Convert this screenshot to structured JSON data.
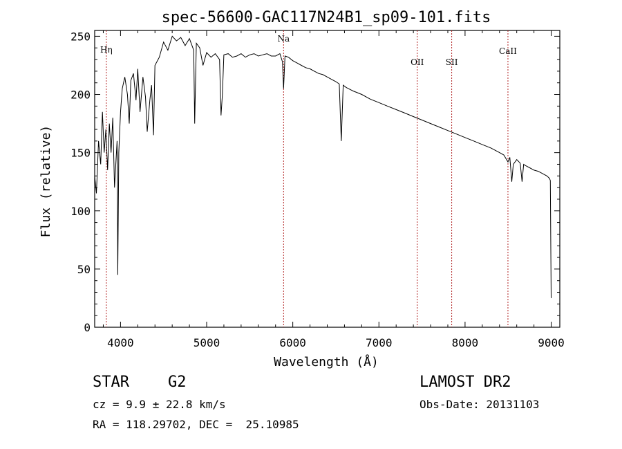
{
  "chart_data": {
    "type": "line",
    "title": "spec-56600-GAC117N24B1_sp09-101.fits",
    "xlabel": "Wavelength (Å)",
    "ylabel": "Flux (relative)",
    "xlim": [
      3700,
      9100
    ],
    "ylim": [
      0,
      255
    ],
    "x_ticks": [
      "4000",
      "5000",
      "6000",
      "7000",
      "8000",
      "9000"
    ],
    "y_ticks": [
      "0",
      "50",
      "100",
      "150",
      "200",
      "250"
    ],
    "series": [
      {
        "x": [
          3700,
          3720,
          3745,
          3770,
          3790,
          3810,
          3830,
          3850,
          3870,
          3890,
          3910,
          3930,
          3960,
          3968,
          3980,
          4000,
          4020,
          4050,
          4080,
          4101,
          4120,
          4150,
          4180,
          4200,
          4226,
          4260,
          4290,
          4310,
          4340,
          4360,
          4383,
          4400,
          4450,
          4500,
          4550,
          4600,
          4650,
          4700,
          4750,
          4800,
          4850,
          4861,
          4880,
          4920,
          4957,
          5000,
          5050,
          5100,
          5150,
          5167,
          5183,
          5200,
          5250,
          5300,
          5350,
          5400,
          5450,
          5500,
          5550,
          5600,
          5650,
          5700,
          5750,
          5800,
          5850,
          5880,
          5893,
          5910,
          5950,
          6000,
          6050,
          6100,
          6150,
          6200,
          6250,
          6300,
          6350,
          6400,
          6450,
          6500,
          6540,
          6563,
          6585,
          6620,
          6700,
          6800,
          6900,
          7000,
          7100,
          7200,
          7300,
          7400,
          7500,
          7600,
          7700,
          7800,
          7900,
          8000,
          8100,
          8200,
          8300,
          8400,
          8450,
          8498,
          8520,
          8542,
          8560,
          8600,
          8640,
          8662,
          8680,
          8700,
          8750,
          8800,
          8850,
          8900,
          8950,
          8980,
          8990,
          9000
        ],
        "y": [
          130,
          115,
          160,
          140,
          185,
          150,
          170,
          135,
          175,
          150,
          180,
          120,
          160,
          45,
          150,
          185,
          205,
          215,
          200,
          175,
          212,
          218,
          195,
          222,
          185,
          215,
          198,
          168,
          195,
          208,
          165,
          225,
          232,
          245,
          238,
          250,
          246,
          249,
          242,
          248,
          238,
          175,
          244,
          240,
          225,
          236,
          232,
          235,
          230,
          182,
          200,
          234,
          235,
          232,
          233,
          235,
          232,
          234,
          235,
          233,
          234,
          235,
          233,
          233,
          235,
          228,
          205,
          233,
          232,
          229,
          227,
          225,
          223,
          222,
          220,
          218,
          217,
          215,
          213,
          211,
          209,
          160,
          208,
          206,
          203,
          200,
          196,
          193,
          190,
          187,
          184,
          181,
          178,
          175,
          172,
          169,
          166,
          163,
          160,
          157,
          154,
          150,
          148,
          142,
          146,
          125,
          140,
          144,
          141,
          125,
          140,
          139,
          137,
          135,
          134,
          132,
          130,
          128,
          126,
          25
        ]
      }
    ],
    "lines": [
      {
        "label": "Hη",
        "x": 3835
      },
      {
        "label": "Na",
        "x": 5893
      },
      {
        "label": "OII",
        "x": 7445
      },
      {
        "label": "SII",
        "x": 7845
      },
      {
        "label": "CaII",
        "x": 8498
      }
    ],
    "grid": false
  },
  "info": {
    "class": "STAR",
    "subclass": "G2",
    "survey": "LAMOST DR2",
    "cz_line": "cz = 9.9 ± 22.8 km/s",
    "obs_date": "Obs-Date: 20131103",
    "radec": "RA = 118.29702, DEC =  25.10985"
  },
  "colors": {
    "axis": "#000000",
    "spectrum": "#000000",
    "marker_line": "#b22222"
  }
}
